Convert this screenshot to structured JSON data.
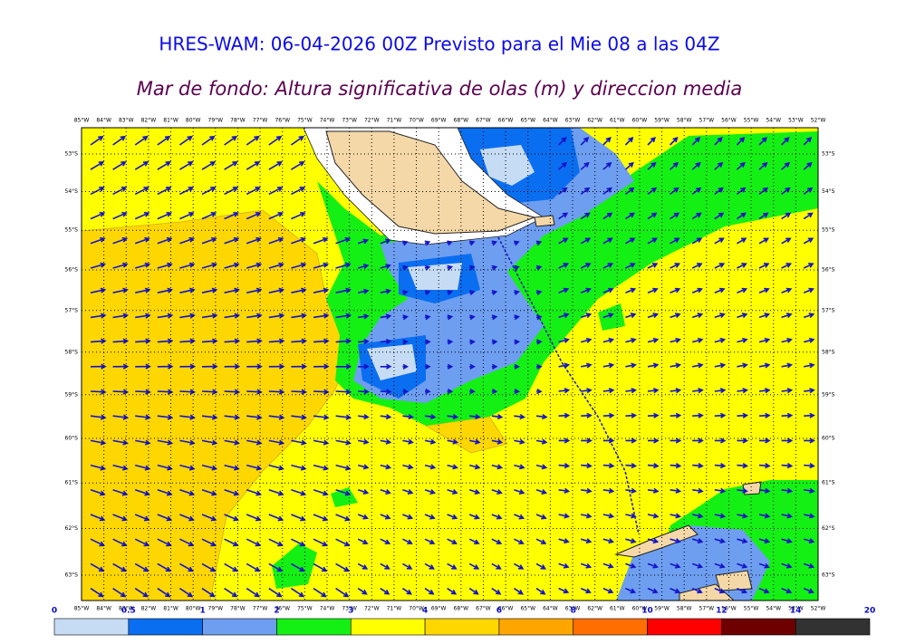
{
  "header": {
    "title": "HRES-WAM: 06-04-2026 00Z Previsto para el Mie 08 a las 04Z",
    "subtitle": "Mar de fondo: Altura significativa de olas (m) y direccion media"
  },
  "map": {
    "lon_labels": [
      "85°W",
      "84°W",
      "83°W",
      "82°W",
      "81°W",
      "80°W",
      "79°W",
      "78°W",
      "77°W",
      "76°W",
      "75°W",
      "74°W",
      "73°W",
      "72°W",
      "71°W",
      "70°W",
      "69°W",
      "68°W",
      "67°W",
      "66°W",
      "65°W",
      "64°W",
      "63°W",
      "62°W",
      "61°W",
      "60°W",
      "59°W",
      "58°W",
      "57°W",
      "56°W",
      "55°W",
      "54°W",
      "53°W",
      "52°W"
    ],
    "lat_labels": [
      "53°S",
      "54°S",
      "55°S",
      "56°S",
      "57°S",
      "58°S",
      "59°S",
      "60°S",
      "61°S",
      "62°S",
      "63°S"
    ]
  },
  "colorbar": {
    "ticks": [
      0,
      0.5,
      1,
      2,
      3,
      4,
      6,
      8,
      10,
      12,
      14,
      20
    ],
    "colors": [
      "#c6dcf5",
      "#0a6ef0",
      "#6e9ef0",
      "#14f014",
      "#ffff00",
      "#ffd700",
      "#ffa500",
      "#ff6e00",
      "#ff0000",
      "#6e0000",
      "#323232"
    ]
  }
}
